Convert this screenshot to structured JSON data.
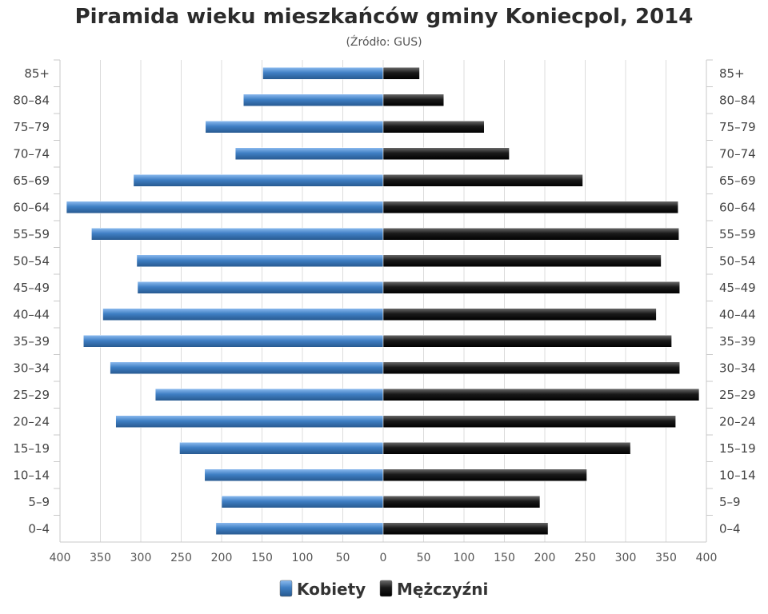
{
  "chart_data": {
    "type": "bar",
    "orientation": "horizontal-pyramid",
    "title": "Piramida wieku mieszkańców gminy Koniecpol, 2014",
    "subtitle": "(Źródło: GUS)",
    "categories": [
      "0–4",
      "5–9",
      "10–14",
      "15–19",
      "20–24",
      "25–29",
      "30–34",
      "35–39",
      "40–44",
      "45–49",
      "50–54",
      "55–59",
      "60–64",
      "65–69",
      "70–74",
      "75–79",
      "80–84",
      "85+"
    ],
    "series": [
      {
        "name": "Kobiety",
        "color": "#3f7fc4",
        "side": "left",
        "values": [
          207,
          200,
          221,
          252,
          331,
          282,
          338,
          371,
          347,
          304,
          305,
          361,
          392,
          309,
          183,
          220,
          173,
          149
        ]
      },
      {
        "name": "Mężczyźni",
        "color": "#1a1a1a",
        "side": "right",
        "values": [
          204,
          194,
          252,
          306,
          362,
          391,
          367,
          357,
          338,
          367,
          344,
          366,
          365,
          247,
          156,
          125,
          75,
          45
        ]
      }
    ],
    "xlim": [
      -400,
      400
    ],
    "x_ticks": [
      400,
      350,
      300,
      250,
      200,
      150,
      100,
      50,
      0,
      50,
      100,
      150,
      200,
      250,
      300,
      350,
      400
    ],
    "grid": true,
    "legend_position": "bottom-center"
  }
}
